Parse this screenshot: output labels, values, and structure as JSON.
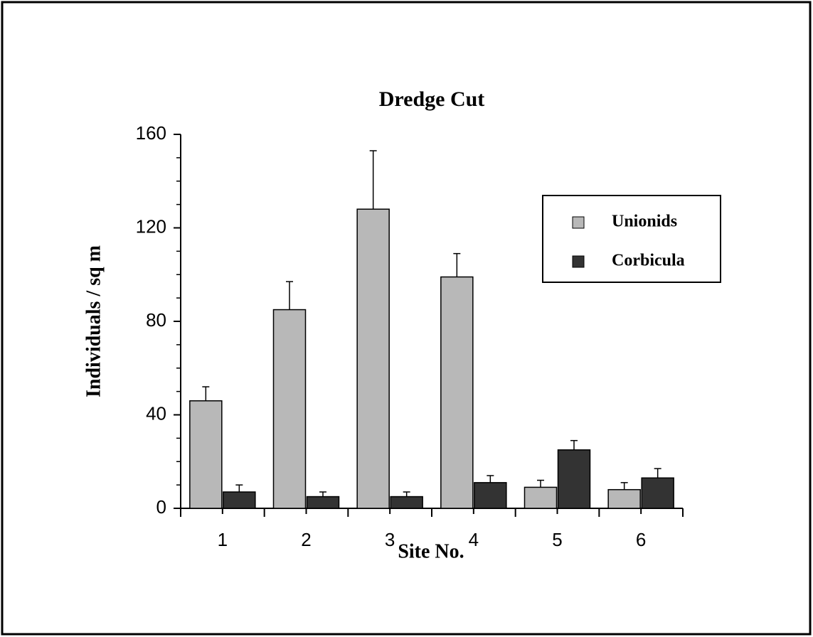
{
  "chart_data": {
    "type": "bar",
    "title": "Dredge Cut",
    "x_label": "Site No.",
    "y_label": "Individuals / sq m",
    "categories": [
      "1",
      "2",
      "3",
      "4",
      "5",
      "6"
    ],
    "series": [
      {
        "name": "Unionids",
        "color": "#b8b8b8",
        "values": [
          46,
          85,
          128,
          99,
          9,
          8
        ],
        "errors": [
          6,
          12,
          25,
          10,
          3,
          3
        ]
      },
      {
        "name": "Corbicula",
        "color": "#333333",
        "values": [
          7,
          5,
          5,
          11,
          25,
          13
        ],
        "errors": [
          3,
          2,
          2,
          3,
          4,
          4
        ]
      }
    ],
    "ylim": [
      0,
      160
    ],
    "yticks": [
      0,
      40,
      80,
      120,
      160
    ],
    "minor_yticks": [
      10,
      20,
      30,
      50,
      60,
      70,
      90,
      100,
      110,
      130,
      140,
      150
    ],
    "legend": "upper right",
    "grid": false
  }
}
